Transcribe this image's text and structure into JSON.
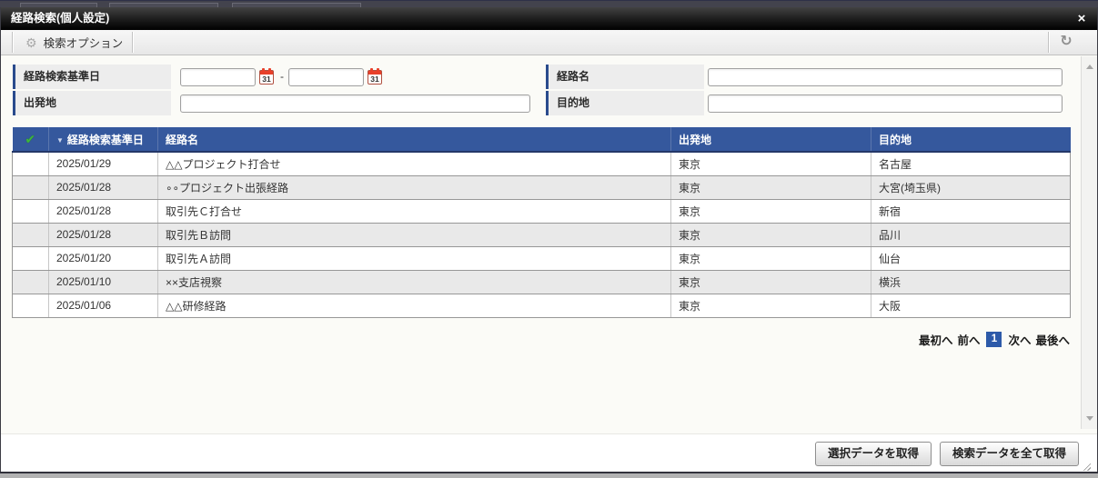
{
  "window": {
    "title": "経路検索(個人設定)",
    "close_icon": "×"
  },
  "toolbar": {
    "search_options_label": "検索オプション",
    "gear_icon": "⚙",
    "refresh_icon": "↻"
  },
  "form": {
    "base_date_label": "経路検索基準日",
    "route_name_label": "経路名",
    "departure_label": "出発地",
    "destination_label": "目的地",
    "date_separator": "-",
    "calendar_icon_day": "31",
    "values": {
      "base_date_from": "",
      "base_date_to": "",
      "route_name": "",
      "departure": "",
      "destination": ""
    }
  },
  "table": {
    "header_check_icon": "✔",
    "sort_indicator": "▼",
    "columns": [
      "経路検索基準日",
      "経路名",
      "出発地",
      "目的地"
    ],
    "rows": [
      {
        "date": "2025/01/29",
        "name": "△△プロジェクト打合せ",
        "from": "東京",
        "to": "名古屋"
      },
      {
        "date": "2025/01/28",
        "name": "∘∘プロジェクト出張経路",
        "from": "東京",
        "to": "大宮(埼玉県)"
      },
      {
        "date": "2025/01/28",
        "name": "取引先Ｃ打合せ",
        "from": "東京",
        "to": "新宿"
      },
      {
        "date": "2025/01/28",
        "name": "取引先Ｂ訪問",
        "from": "東京",
        "to": "品川"
      },
      {
        "date": "2025/01/20",
        "name": "取引先Ａ訪問",
        "from": "東京",
        "to": "仙台"
      },
      {
        "date": "2025/01/10",
        "name": "××支店視察",
        "from": "東京",
        "to": "横浜"
      },
      {
        "date": "2025/01/06",
        "name": "△△研修経路",
        "from": "東京",
        "to": "大阪"
      }
    ]
  },
  "pagination": {
    "first": "最初へ",
    "prev": "前へ",
    "current_page": "1",
    "next": "次へ",
    "last": "最後へ"
  },
  "footer": {
    "get_selected_label": "選択データを取得",
    "get_all_label": "検索データを全て取得"
  },
  "colors": {
    "table_header_blue": "#35589d",
    "page_badge_blue": "#2d5aa9",
    "check_green": "#3db53c",
    "calendar_red": "#e8402a",
    "label_accent_navy": "#2a4b8d",
    "titlebar_black": "#000000"
  }
}
